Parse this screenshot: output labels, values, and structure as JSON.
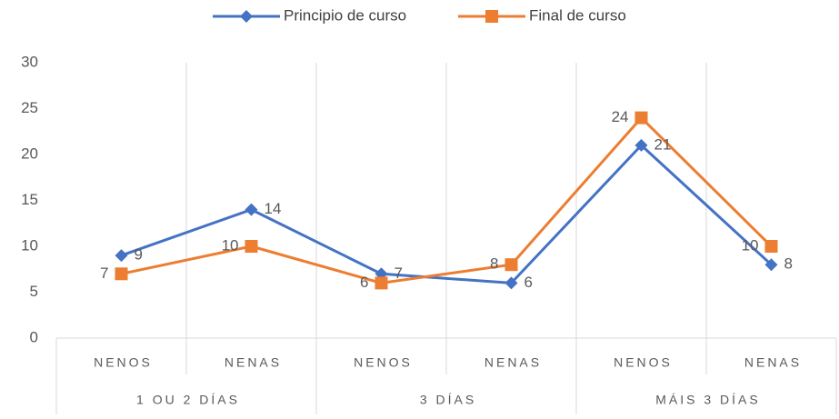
{
  "chart_data": {
    "type": "line",
    "categories": [
      "NENOS",
      "NENAS",
      "NENOS",
      "NENAS",
      "NENOS",
      "NENAS"
    ],
    "groups": [
      "1 OU 2 DÍAS",
      "3 DÍAS",
      "MÁIS 3 DÍAS"
    ],
    "series": [
      {
        "name": "Principio de curso",
        "color": "#4472c4",
        "marker": "diamond",
        "values": [
          9,
          14,
          7,
          6,
          21,
          8
        ]
      },
      {
        "name": "Final de curso",
        "color": "#ed7d31",
        "marker": "square",
        "values": [
          7,
          10,
          6,
          8,
          24,
          10
        ]
      }
    ],
    "ylim": [
      0,
      30
    ],
    "yticks": [
      0,
      5,
      10,
      15,
      20,
      25,
      30
    ],
    "legend": "top"
  }
}
